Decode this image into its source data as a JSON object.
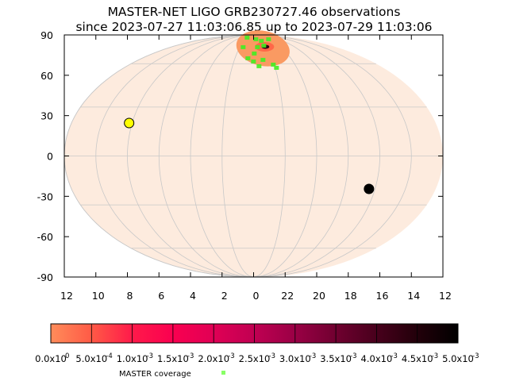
{
  "chart_data": {
    "type": "scatter",
    "projection": "mollweide",
    "title": "MASTER-NET LIGO GRB230727.46 observations",
    "subtitle": "since 2023-07-27 11:03:06.85 up to 2023-07-29 11:03:06",
    "y_ticks": [
      "90",
      "60",
      "30",
      "0",
      "-30",
      "-60",
      "-90"
    ],
    "x_ticks": [
      "12",
      "10",
      "8",
      "6",
      "4",
      "2",
      "0",
      "22",
      "20",
      "18",
      "16",
      "14",
      "12"
    ],
    "ylim": [
      -90,
      90
    ],
    "grid": true,
    "sky_background_color": "#fdebde",
    "grid_color": "#c8c8c8",
    "markers": [
      {
        "symbol": "sun",
        "color": "#ffff00",
        "ra_hours": 8.2,
        "dec": 20
      },
      {
        "symbol": "moon",
        "color": "#000000",
        "ra_hours": 16.4,
        "dec": -20
      }
    ],
    "probability_region": {
      "color": "#fa9a62",
      "center_ra_hours": 22.7,
      "center_dec": 73
    },
    "coverage_color": "#44ee22",
    "colorbar": {
      "tick_labels": [
        "0.0x10",
        "5.0x10",
        "1.0x10",
        "1.5x10",
        "2.0x10",
        "2.5x10",
        "3.0x10",
        "3.5x10",
        "4.0x10",
        "4.5x10",
        "5.0x10"
      ],
      "tick_exponents": [
        "0",
        "-4",
        "-3",
        "-3",
        "-3",
        "-3",
        "-3",
        "-3",
        "-3",
        "-3",
        "-3"
      ],
      "colors": [
        "#ff8c5a",
        "#ff5a46",
        "#ff1a4a",
        "#fa0050",
        "#e00055",
        "#c00052",
        "#9a0045",
        "#700030",
        "#48001c",
        "#22000a",
        "#000000"
      ]
    },
    "legend": {
      "label": "MASTER coverage",
      "color": "#88ff66"
    }
  }
}
